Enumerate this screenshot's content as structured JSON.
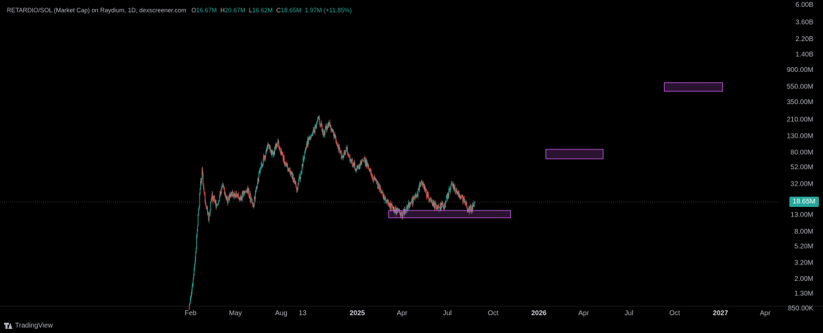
{
  "legend": {
    "symbol": "RETARDIO/SOL (Market Cap) on Raydium, 1D, dexscreener.com",
    "o_label": "O",
    "o_value": "16.67M",
    "h_label": "H",
    "h_value": "20.67M",
    "l_label": "L",
    "l_value": "16.62M",
    "c_label": "C",
    "c_value": "18.65M",
    "change": "1.97M (+11.85%)"
  },
  "brand": "TradingView",
  "price_tag": "18.65M",
  "colors": {
    "up": "#26a69a",
    "down": "#ef5350",
    "zone": "#c158dc",
    "tag": "#26a69a",
    "background": "#000000"
  },
  "chart_data": {
    "type": "candlestick",
    "y_scale": "log",
    "y_ticks": [
      {
        "label": "6.00B",
        "value": 6000
      },
      {
        "label": "3.60B",
        "value": 3600
      },
      {
        "label": "2.20B",
        "value": 2200
      },
      {
        "label": "1.40B",
        "value": 1400
      },
      {
        "label": "900.00M",
        "value": 900
      },
      {
        "label": "550.00M",
        "value": 550
      },
      {
        "label": "350.00M",
        "value": 350
      },
      {
        "label": "210.00M",
        "value": 210
      },
      {
        "label": "130.00M",
        "value": 130
      },
      {
        "label": "80.00M",
        "value": 80
      },
      {
        "label": "52.00M",
        "value": 52
      },
      {
        "label": "32.00M",
        "value": 32
      },
      {
        "label": "13.00M",
        "value": 13
      },
      {
        "label": "8.00M",
        "value": 8
      },
      {
        "label": "5.20M",
        "value": 5.2
      },
      {
        "label": "3.20M",
        "value": 3.2
      },
      {
        "label": "2.00M",
        "value": 2
      },
      {
        "label": "1.30M",
        "value": 1.3
      },
      {
        "label": "850.00K",
        "value": 0.85
      }
    ],
    "y_unit": "M",
    "x_ticks": [
      {
        "label": "Feb",
        "date": "2024-02-01",
        "bold": false
      },
      {
        "label": "May",
        "date": "2024-05-01",
        "bold": false
      },
      {
        "label": "Aug",
        "date": "2024-08-01",
        "bold": false
      },
      {
        "label": "13",
        "date": "2024-09-13",
        "bold": false
      },
      {
        "label": "2025",
        "date": "2025-01-01",
        "bold": true
      },
      {
        "label": "Apr",
        "date": "2025-04-01",
        "bold": false
      },
      {
        "label": "Jul",
        "date": "2025-07-01",
        "bold": false
      },
      {
        "label": "Oct",
        "date": "2025-10-01",
        "bold": false
      },
      {
        "label": "2026",
        "date": "2026-01-01",
        "bold": true
      },
      {
        "label": "Apr",
        "date": "2026-04-01",
        "bold": false
      },
      {
        "label": "Jul",
        "date": "2026-07-01",
        "bold": false
      },
      {
        "label": "Oct",
        "date": "2026-10-01",
        "bold": false
      },
      {
        "label": "2027",
        "date": "2027-01-01",
        "bold": true
      },
      {
        "label": "Apr",
        "date": "2027-04-01",
        "bold": false
      }
    ],
    "last_close": 18.65,
    "price_path": [
      {
        "date": "2024-01-29",
        "value": 0.9
      },
      {
        "date": "2024-02-04",
        "value": 1.5
      },
      {
        "date": "2024-02-08",
        "value": 2.6
      },
      {
        "date": "2024-02-12",
        "value": 5
      },
      {
        "date": "2024-02-16",
        "value": 12
      },
      {
        "date": "2024-02-20",
        "value": 28
      },
      {
        "date": "2024-02-24",
        "value": 45
      },
      {
        "date": "2024-03-01",
        "value": 20
      },
      {
        "date": "2024-03-08",
        "value": 12
      },
      {
        "date": "2024-03-15",
        "value": 22
      },
      {
        "date": "2024-03-25",
        "value": 17
      },
      {
        "date": "2024-04-05",
        "value": 30
      },
      {
        "date": "2024-04-15",
        "value": 19
      },
      {
        "date": "2024-04-25",
        "value": 25
      },
      {
        "date": "2024-05-10",
        "value": 21
      },
      {
        "date": "2024-05-25",
        "value": 28
      },
      {
        "date": "2024-06-05",
        "value": 16
      },
      {
        "date": "2024-06-20",
        "value": 50
      },
      {
        "date": "2024-07-05",
        "value": 95
      },
      {
        "date": "2024-07-15",
        "value": 75
      },
      {
        "date": "2024-07-25",
        "value": 110
      },
      {
        "date": "2024-08-05",
        "value": 65
      },
      {
        "date": "2024-08-20",
        "value": 45
      },
      {
        "date": "2024-09-01",
        "value": 28
      },
      {
        "date": "2024-09-10",
        "value": 45
      },
      {
        "date": "2024-09-20",
        "value": 100
      },
      {
        "date": "2024-10-05",
        "value": 150
      },
      {
        "date": "2024-10-15",
        "value": 210
      },
      {
        "date": "2024-10-25",
        "value": 140
      },
      {
        "date": "2024-11-05",
        "value": 180
      },
      {
        "date": "2024-11-15",
        "value": 135
      },
      {
        "date": "2024-12-01",
        "value": 70
      },
      {
        "date": "2024-12-10",
        "value": 90
      },
      {
        "date": "2024-12-20",
        "value": 60
      },
      {
        "date": "2025-01-01",
        "value": 50
      },
      {
        "date": "2025-01-15",
        "value": 65
      },
      {
        "date": "2025-02-01",
        "value": 38
      },
      {
        "date": "2025-02-15",
        "value": 28
      },
      {
        "date": "2025-03-01",
        "value": 18
      },
      {
        "date": "2025-03-15",
        "value": 15
      },
      {
        "date": "2025-04-01",
        "value": 13
      },
      {
        "date": "2025-04-15",
        "value": 17
      },
      {
        "date": "2025-05-01",
        "value": 23
      },
      {
        "date": "2025-05-10",
        "value": 36
      },
      {
        "date": "2025-05-25",
        "value": 20
      },
      {
        "date": "2025-06-10",
        "value": 16
      },
      {
        "date": "2025-06-25",
        "value": 17
      },
      {
        "date": "2025-07-10",
        "value": 33
      },
      {
        "date": "2025-07-20",
        "value": 25
      },
      {
        "date": "2025-08-01",
        "value": 20
      },
      {
        "date": "2025-08-10",
        "value": 16
      },
      {
        "date": "2025-08-18",
        "value": 15
      },
      {
        "date": "2025-08-25",
        "value": 18.65
      }
    ],
    "zones": [
      {
        "start": "2025-03-05",
        "end": "2025-11-05",
        "low": 11.8,
        "high": 14.6
      },
      {
        "start": "2026-01-15",
        "end": "2026-05-10",
        "low": 66,
        "high": 87
      },
      {
        "start": "2026-09-10",
        "end": "2027-01-05",
        "low": 475,
        "high": 610
      }
    ]
  }
}
